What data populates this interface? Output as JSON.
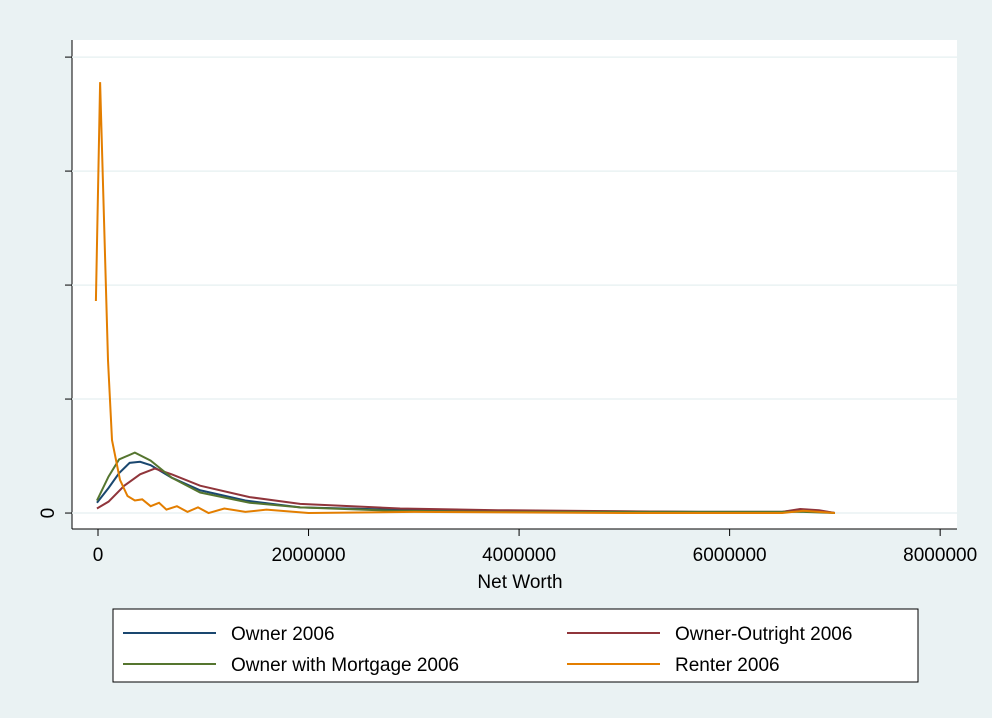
{
  "chart_data": {
    "type": "line",
    "xlabel": "Net Worth",
    "xlim": [
      -247000,
      8160000
    ],
    "ylim": [
      -1.4e-07,
      4.15e-06
    ],
    "xticks": [
      0,
      2000000,
      4000000,
      6000000,
      8000000
    ],
    "yticks": [
      0
    ],
    "yticks_unlabeled": [
      1e-06,
      2e-06,
      3e-06,
      4e-06
    ],
    "grid": true,
    "series": [
      {
        "name": "Owner 2006",
        "color": "#1a476f",
        "x": [
          -10000,
          100000,
          200000,
          300000,
          400000,
          500000,
          700000,
          970000,
          1400000,
          1920000,
          2800000,
          3800000,
          5700000,
          6500000,
          6670000,
          6850000,
          7000000
        ],
        "values": [
          9e-08,
          2.2e-07,
          3.5e-07,
          4.4e-07,
          4.5e-07,
          4.2e-07,
          3.1e-07,
          2e-07,
          1.1e-07,
          5e-08,
          3e-08,
          2e-08,
          1e-08,
          1e-08,
          3e-08,
          2e-08,
          0
        ]
      },
      {
        "name": "Owner-Outright 2006",
        "color": "#90353b",
        "x": [
          -10000,
          100000,
          250000,
          400000,
          540000,
          700000,
          970000,
          1440000,
          1920000,
          2870000,
          3800000,
          5700000,
          6500000,
          6670000,
          6850000,
          7000000
        ],
        "values": [
          4e-08,
          1e-07,
          2.4e-07,
          3.4e-07,
          3.9e-07,
          3.4e-07,
          2.4e-07,
          1.4e-07,
          8e-08,
          4e-08,
          2.5e-08,
          1e-08,
          1e-08,
          3.5e-08,
          2.5e-08,
          0
        ]
      },
      {
        "name": "Owner with Mortgage 2006",
        "color": "#55752f",
        "x": [
          -10000,
          100000,
          200000,
          350000,
          500000,
          700000,
          970000,
          1440000,
          1920000,
          2800000,
          3800000,
          5700000,
          6700000,
          7000000
        ],
        "values": [
          1.1e-07,
          3.2e-07,
          4.7e-07,
          5.3e-07,
          4.6e-07,
          3.1e-07,
          1.8e-07,
          9e-08,
          5e-08,
          2e-08,
          1e-08,
          1e-08,
          1e-08,
          0
        ]
      },
      {
        "name": "Renter 2006",
        "color": "#e37e00",
        "x": [
          -20000,
          20000,
          95000,
          133000,
          209000,
          280000,
          350000,
          420000,
          500000,
          580000,
          650000,
          750000,
          850000,
          950000,
          1050000,
          1200000,
          1400000,
          1600000,
          2000000,
          3000000,
          5000000,
          6500000,
          6700000,
          7000000
        ],
        "values": [
          1.86e-06,
          3.78e-06,
          1.34e-06,
          6.4e-07,
          2.9e-07,
          1.5e-07,
          1.1e-07,
          1.2e-07,
          6e-08,
          9e-08,
          3e-08,
          6e-08,
          1e-08,
          5e-08,
          0,
          4e-08,
          1e-08,
          3e-08,
          0,
          1e-08,
          0,
          0,
          2e-08,
          0
        ]
      }
    ]
  }
}
